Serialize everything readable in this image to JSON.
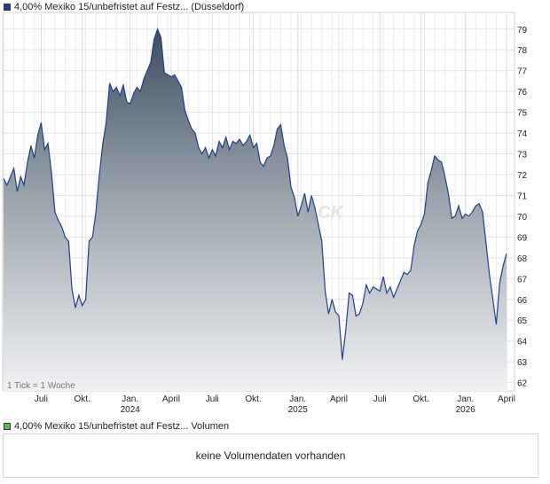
{
  "price_legend": {
    "label": "4,00% Mexiko 15/unbefristet auf Festz... (Düsseldorf)",
    "color": "#1f3f8f"
  },
  "volume_legend": {
    "label": "4,00% Mexiko 15/unbefristet auf Festz... Volumen",
    "color": "#5cb85c"
  },
  "volume_message": "keine Volumendaten vorhanden",
  "tick_note": "1 Tick = 1 Woche",
  "watermark": "CK",
  "chart_data": {
    "type": "area",
    "grid": true,
    "ylim": [
      61.6,
      79.8
    ],
    "y_ticks": [
      62,
      63,
      64,
      65,
      66,
      67,
      68,
      69,
      70,
      71,
      72,
      73,
      74,
      75,
      76,
      77,
      78,
      79
    ],
    "x_range": [
      0,
      147
    ],
    "x_ticks": [
      {
        "x": 11,
        "label": "Juli",
        "year": ""
      },
      {
        "x": 23,
        "label": "Okt.",
        "year": ""
      },
      {
        "x": 37,
        "label": "Jan.",
        "year": "2024"
      },
      {
        "x": 49,
        "label": "April",
        "year": ""
      },
      {
        "x": 61,
        "label": "Juli",
        "year": ""
      },
      {
        "x": 73,
        "label": "Okt.",
        "year": ""
      },
      {
        "x": 86,
        "label": "Jan.",
        "year": "2025"
      },
      {
        "x": 98,
        "label": "April",
        "year": ""
      },
      {
        "x": 110,
        "label": "Juli",
        "year": ""
      },
      {
        "x": 122,
        "label": "Okt.",
        "year": ""
      },
      {
        "x": 135,
        "label": "Jan.",
        "year": "2026"
      },
      {
        "x": 147,
        "label": "April",
        "year": ""
      }
    ],
    "series": [
      {
        "values": [
          [
            0,
            71.8
          ],
          [
            1,
            71.5
          ],
          [
            2,
            71.9
          ],
          [
            3,
            72.3
          ],
          [
            4,
            71.2
          ],
          [
            5,
            71.9
          ],
          [
            6,
            71.5
          ],
          [
            7,
            72.6
          ],
          [
            8,
            73.4
          ],
          [
            9,
            72.8
          ],
          [
            10,
            73.9
          ],
          [
            11,
            74.5
          ],
          [
            12,
            73.2
          ],
          [
            13,
            73.5
          ],
          [
            14,
            72.1
          ],
          [
            15,
            70.2
          ],
          [
            16,
            69.8
          ],
          [
            17,
            69.5
          ],
          [
            18,
            69.0
          ],
          [
            19,
            68.8
          ],
          [
            20,
            66.5
          ],
          [
            21,
            65.6
          ],
          [
            22,
            66.2
          ],
          [
            23,
            65.7
          ],
          [
            24,
            66.0
          ],
          [
            25,
            68.8
          ],
          [
            26,
            69.0
          ],
          [
            27,
            70.2
          ],
          [
            28,
            72.0
          ],
          [
            29,
            73.5
          ],
          [
            30,
            74.5
          ],
          [
            31,
            76.4
          ],
          [
            32,
            76.0
          ],
          [
            33,
            76.2
          ],
          [
            34,
            75.8
          ],
          [
            35,
            76.3
          ],
          [
            36,
            75.5
          ],
          [
            37,
            75.4
          ],
          [
            38,
            75.9
          ],
          [
            39,
            76.2
          ],
          [
            40,
            76.0
          ],
          [
            41,
            76.6
          ],
          [
            42,
            77.0
          ],
          [
            43,
            77.4
          ],
          [
            44,
            78.5
          ],
          [
            45,
            79.0
          ],
          [
            46,
            78.6
          ],
          [
            47,
            76.9
          ],
          [
            48,
            76.8
          ],
          [
            49,
            76.7
          ],
          [
            50,
            76.8
          ],
          [
            51,
            76.5
          ],
          [
            52,
            76.2
          ],
          [
            53,
            75.1
          ],
          [
            54,
            74.6
          ],
          [
            55,
            74.2
          ],
          [
            56,
            74.0
          ],
          [
            57,
            73.3
          ],
          [
            58,
            73.0
          ],
          [
            59,
            73.3
          ],
          [
            60,
            72.8
          ],
          [
            61,
            73.2
          ],
          [
            62,
            72.9
          ],
          [
            63,
            73.6
          ],
          [
            64,
            73.3
          ],
          [
            65,
            73.8
          ],
          [
            66,
            73.2
          ],
          [
            67,
            73.6
          ],
          [
            68,
            73.5
          ],
          [
            69,
            73.7
          ],
          [
            70,
            73.4
          ],
          [
            71,
            73.6
          ],
          [
            72,
            73.9
          ],
          [
            73,
            73.3
          ],
          [
            74,
            73.5
          ],
          [
            75,
            72.6
          ],
          [
            76,
            72.4
          ],
          [
            77,
            72.8
          ],
          [
            78,
            72.9
          ],
          [
            79,
            73.4
          ],
          [
            80,
            74.2
          ],
          [
            81,
            74.4
          ],
          [
            82,
            73.4
          ],
          [
            83,
            72.8
          ],
          [
            84,
            71.4
          ],
          [
            85,
            70.9
          ],
          [
            86,
            70.0
          ],
          [
            87,
            70.5
          ],
          [
            88,
            71.1
          ],
          [
            89,
            70.2
          ],
          [
            90,
            71.0
          ],
          [
            91,
            70.4
          ],
          [
            92,
            69.6
          ],
          [
            93,
            68.8
          ],
          [
            94,
            66.4
          ],
          [
            95,
            65.3
          ],
          [
            96,
            66.0
          ],
          [
            97,
            65.4
          ],
          [
            98,
            65.2
          ],
          [
            99,
            63.1
          ],
          [
            100,
            64.5
          ],
          [
            101,
            66.3
          ],
          [
            102,
            66.2
          ],
          [
            103,
            65.2
          ],
          [
            104,
            65.3
          ],
          [
            105,
            65.8
          ],
          [
            106,
            66.7
          ],
          [
            107,
            66.3
          ],
          [
            108,
            66.6
          ],
          [
            109,
            66.5
          ],
          [
            110,
            66.4
          ],
          [
            111,
            67.1
          ],
          [
            112,
            66.3
          ],
          [
            113,
            66.6
          ],
          [
            114,
            66.1
          ],
          [
            115,
            66.5
          ],
          [
            116,
            66.9
          ],
          [
            117,
            67.3
          ],
          [
            118,
            67.2
          ],
          [
            119,
            67.4
          ],
          [
            120,
            68.6
          ],
          [
            121,
            69.3
          ],
          [
            122,
            69.6
          ],
          [
            123,
            70.1
          ],
          [
            124,
            71.6
          ],
          [
            125,
            72.2
          ],
          [
            126,
            72.9
          ],
          [
            127,
            72.7
          ],
          [
            128,
            72.6
          ],
          [
            129,
            71.9
          ],
          [
            130,
            71.1
          ],
          [
            131,
            69.9
          ],
          [
            132,
            70.0
          ],
          [
            133,
            70.5
          ],
          [
            134,
            69.9
          ],
          [
            135,
            70.1
          ],
          [
            136,
            70.0
          ],
          [
            137,
            70.2
          ],
          [
            138,
            70.5
          ],
          [
            139,
            70.6
          ],
          [
            140,
            70.2
          ],
          [
            141,
            68.7
          ],
          [
            142,
            67.2
          ],
          [
            143,
            66.0
          ],
          [
            144,
            64.8
          ],
          [
            145,
            66.8
          ],
          [
            146,
            67.6
          ],
          [
            147,
            68.2
          ]
        ]
      }
    ]
  }
}
